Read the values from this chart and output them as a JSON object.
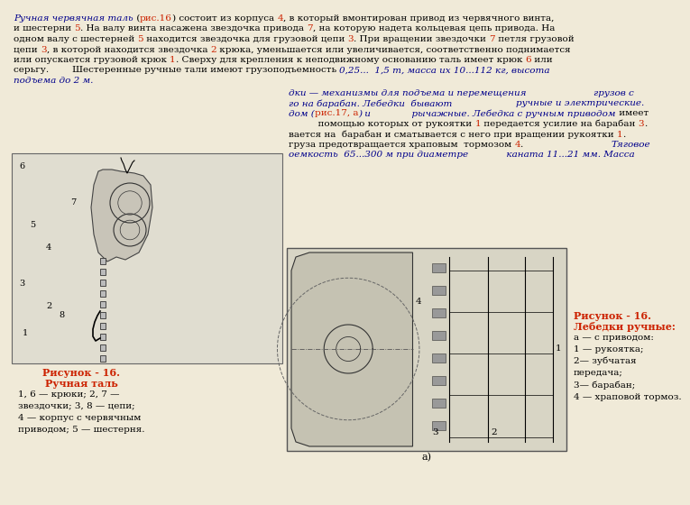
{
  "bg_color": "#f0ead8",
  "BLACK": "#000000",
  "RED": "#cc2200",
  "BLUE_IT": "#00008B",
  "caption_left_title": "Рисунок - 16.",
  "caption_left_sub": "Ручная таль",
  "caption_left_body": "1, 6 — крюки; 2, 7 —\nзвездочки; 3, 8 — цепи;\n4 — корпус с червячным\nприводом; 5 — шестерня.",
  "caption_right_title": "Рисунок - 16.",
  "caption_right_sub": "Лебедки ручные:",
  "caption_right_body": "а — с приводом:\n1 — рукоятка;\n2— зубчатая\nпередача;\n3— барабан;\n4 — храповой тормоз."
}
